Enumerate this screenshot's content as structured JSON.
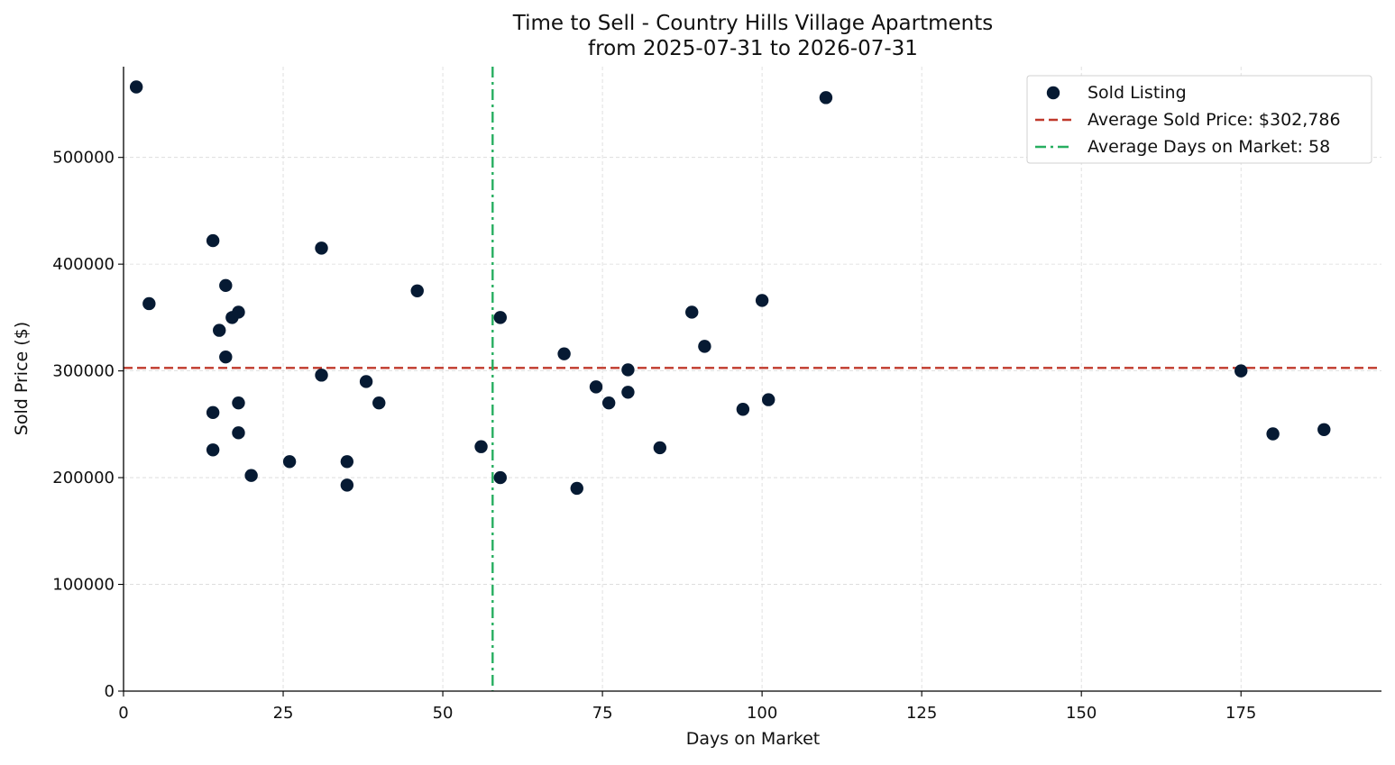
{
  "chart_data": {
    "type": "scatter",
    "title_line1": "Time to Sell - Country Hills Village Apartments",
    "title_line2": "from 2025-07-31 to 2026-07-31",
    "xlabel": "Days on Market",
    "ylabel": "Sold Price ($)",
    "xlim": [
      0,
      197
    ],
    "ylim": [
      0,
      585000
    ],
    "x_ticks": [
      0,
      25,
      50,
      75,
      100,
      125,
      150,
      175
    ],
    "y_ticks": [
      0,
      100000,
      200000,
      300000,
      400000,
      500000
    ],
    "grid": true,
    "legend_position": "top-right",
    "series": [
      {
        "name": "Sold Listing",
        "color": "#061a33",
        "points": [
          {
            "x": 2,
            "y": 566000
          },
          {
            "x": 4,
            "y": 363000
          },
          {
            "x": 14,
            "y": 422000
          },
          {
            "x": 14,
            "y": 261000
          },
          {
            "x": 14,
            "y": 226000
          },
          {
            "x": 15,
            "y": 338000
          },
          {
            "x": 16,
            "y": 380000
          },
          {
            "x": 16,
            "y": 313000
          },
          {
            "x": 17,
            "y": 350000
          },
          {
            "x": 18,
            "y": 355000
          },
          {
            "x": 18,
            "y": 270000
          },
          {
            "x": 18,
            "y": 242000
          },
          {
            "x": 20,
            "y": 202000
          },
          {
            "x": 26,
            "y": 215000
          },
          {
            "x": 31,
            "y": 415000
          },
          {
            "x": 31,
            "y": 296000
          },
          {
            "x": 35,
            "y": 215000
          },
          {
            "x": 35,
            "y": 193000
          },
          {
            "x": 38,
            "y": 290000
          },
          {
            "x": 40,
            "y": 270000
          },
          {
            "x": 46,
            "y": 375000
          },
          {
            "x": 56,
            "y": 229000
          },
          {
            "x": 59,
            "y": 350000
          },
          {
            "x": 59,
            "y": 200000
          },
          {
            "x": 69,
            "y": 316000
          },
          {
            "x": 71,
            "y": 190000
          },
          {
            "x": 74,
            "y": 285000
          },
          {
            "x": 76,
            "y": 270000
          },
          {
            "x": 79,
            "y": 301000
          },
          {
            "x": 79,
            "y": 280000
          },
          {
            "x": 84,
            "y": 228000
          },
          {
            "x": 89,
            "y": 355000
          },
          {
            "x": 91,
            "y": 323000
          },
          {
            "x": 97,
            "y": 264000
          },
          {
            "x": 100,
            "y": 366000
          },
          {
            "x": 101,
            "y": 273000
          },
          {
            "x": 110,
            "y": 556000
          },
          {
            "x": 175,
            "y": 300000
          },
          {
            "x": 180,
            "y": 241000
          },
          {
            "x": 188,
            "y": 245000
          }
        ]
      }
    ],
    "reference_lines": [
      {
        "name": "Average Sold Price: $302,786",
        "orientation": "horizontal",
        "value": 302786,
        "color": "#c0392b",
        "style": "dashed"
      },
      {
        "name": "Average Days on Market: 58",
        "orientation": "vertical",
        "value": 57.8,
        "color": "#27ae60",
        "style": "dash-dot"
      }
    ]
  }
}
